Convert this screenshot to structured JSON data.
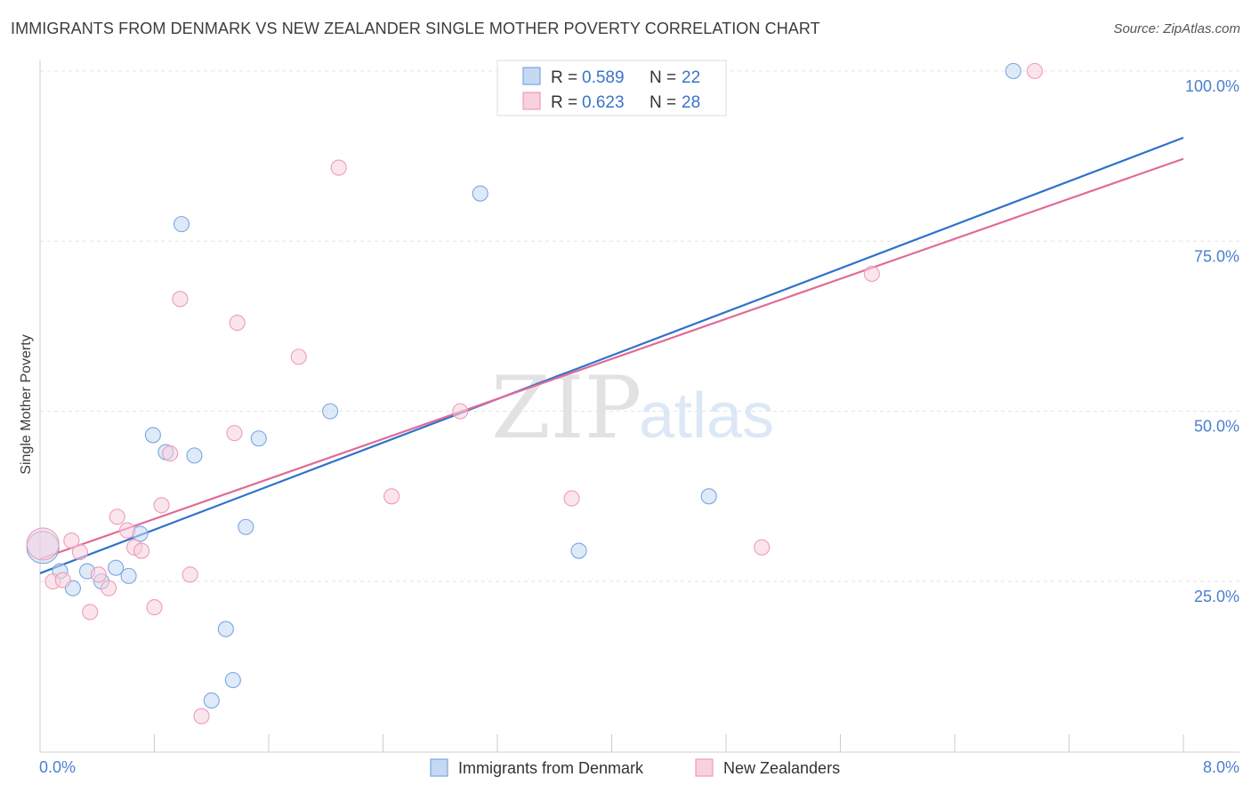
{
  "chart_data": {
    "type": "scatter",
    "title": "IMMIGRANTS FROM DENMARK VS NEW ZEALANDER SINGLE MOTHER POVERTY CORRELATION CHART",
    "source": "Source: ZipAtlas.com",
    "xlabel": "",
    "ylabel": "Single Mother Poverty",
    "xlim": [
      0,
      8
    ],
    "ylim": [
      0,
      102
    ],
    "x_tick_labels": {
      "min": "0.0%",
      "max": "8.0%"
    },
    "y_ticks": [
      {
        "value": 25,
        "label": "25.0%"
      },
      {
        "value": 50,
        "label": "50.0%"
      },
      {
        "value": 75,
        "label": "75.0%"
      },
      {
        "value": 100,
        "label": "100.0%"
      }
    ],
    "grid": true,
    "watermark": {
      "part1": "ZIP",
      "part2": "atlas"
    },
    "legend": {
      "placement": "top-center",
      "entries": [
        {
          "r_label": "R = ",
          "r_value": "0.589",
          "n_label": "N = ",
          "n_value": "22"
        },
        {
          "r_label": "R = ",
          "r_value": "0.623",
          "n_label": "N = ",
          "n_value": "28"
        }
      ]
    },
    "series": [
      {
        "name": "Immigrants from Denmark",
        "color": "#7aa6e0",
        "fill": "#c5d9f3",
        "line_color": "#2f72cc",
        "trend": {
          "x0": 0,
          "y0": 26.2,
          "x1": 8,
          "y1": 90.2
        },
        "points": [
          {
            "x": 0.02,
            "y": 30.0,
            "big": true
          },
          {
            "x": 0.14,
            "y": 26.5
          },
          {
            "x": 0.23,
            "y": 24.0
          },
          {
            "x": 0.33,
            "y": 26.5
          },
          {
            "x": 0.43,
            "y": 25.0
          },
          {
            "x": 0.53,
            "y": 27.0
          },
          {
            "x": 0.62,
            "y": 25.8
          },
          {
            "x": 0.7,
            "y": 32.0
          },
          {
            "x": 0.79,
            "y": 46.5
          },
          {
            "x": 0.88,
            "y": 44.0
          },
          {
            "x": 0.99,
            "y": 77.5
          },
          {
            "x": 1.08,
            "y": 43.5
          },
          {
            "x": 1.2,
            "y": 7.5
          },
          {
            "x": 1.3,
            "y": 18.0
          },
          {
            "x": 1.35,
            "y": 10.5
          },
          {
            "x": 1.44,
            "y": 33.0
          },
          {
            "x": 1.53,
            "y": 46.0
          },
          {
            "x": 2.03,
            "y": 50.0
          },
          {
            "x": 3.08,
            "y": 82.0
          },
          {
            "x": 3.77,
            "y": 29.5
          },
          {
            "x": 4.68,
            "y": 37.5
          },
          {
            "x": 6.81,
            "y": 100.0
          }
        ]
      },
      {
        "name": "New Zealanders",
        "color": "#ee9cb7",
        "fill": "#f8d0de",
        "line_color": "#e06b98",
        "trend": {
          "x0": 0,
          "y0": 28.3,
          "x1": 8,
          "y1": 87.1
        },
        "points": [
          {
            "x": 0.02,
            "y": 30.5,
            "big": true
          },
          {
            "x": 0.09,
            "y": 25.0
          },
          {
            "x": 0.16,
            "y": 25.2
          },
          {
            "x": 0.22,
            "y": 31.0
          },
          {
            "x": 0.28,
            "y": 29.3
          },
          {
            "x": 0.35,
            "y": 20.5
          },
          {
            "x": 0.41,
            "y": 26.0
          },
          {
            "x": 0.48,
            "y": 24.0
          },
          {
            "x": 0.54,
            "y": 34.5
          },
          {
            "x": 0.61,
            "y": 32.5
          },
          {
            "x": 0.66,
            "y": 30.0
          },
          {
            "x": 0.71,
            "y": 29.5
          },
          {
            "x": 0.8,
            "y": 21.2
          },
          {
            "x": 0.85,
            "y": 36.2
          },
          {
            "x": 0.91,
            "y": 43.8
          },
          {
            "x": 0.98,
            "y": 66.5
          },
          {
            "x": 1.05,
            "y": 26.0
          },
          {
            "x": 1.13,
            "y": 5.2
          },
          {
            "x": 1.36,
            "y": 46.8
          },
          {
            "x": 1.38,
            "y": 63.0
          },
          {
            "x": 1.81,
            "y": 58.0
          },
          {
            "x": 2.09,
            "y": 85.8
          },
          {
            "x": 2.46,
            "y": 37.5
          },
          {
            "x": 2.94,
            "y": 50.0
          },
          {
            "x": 3.72,
            "y": 37.2
          },
          {
            "x": 5.05,
            "y": 30.0
          },
          {
            "x": 5.82,
            "y": 70.2
          },
          {
            "x": 6.96,
            "y": 100.0
          }
        ]
      }
    ]
  }
}
